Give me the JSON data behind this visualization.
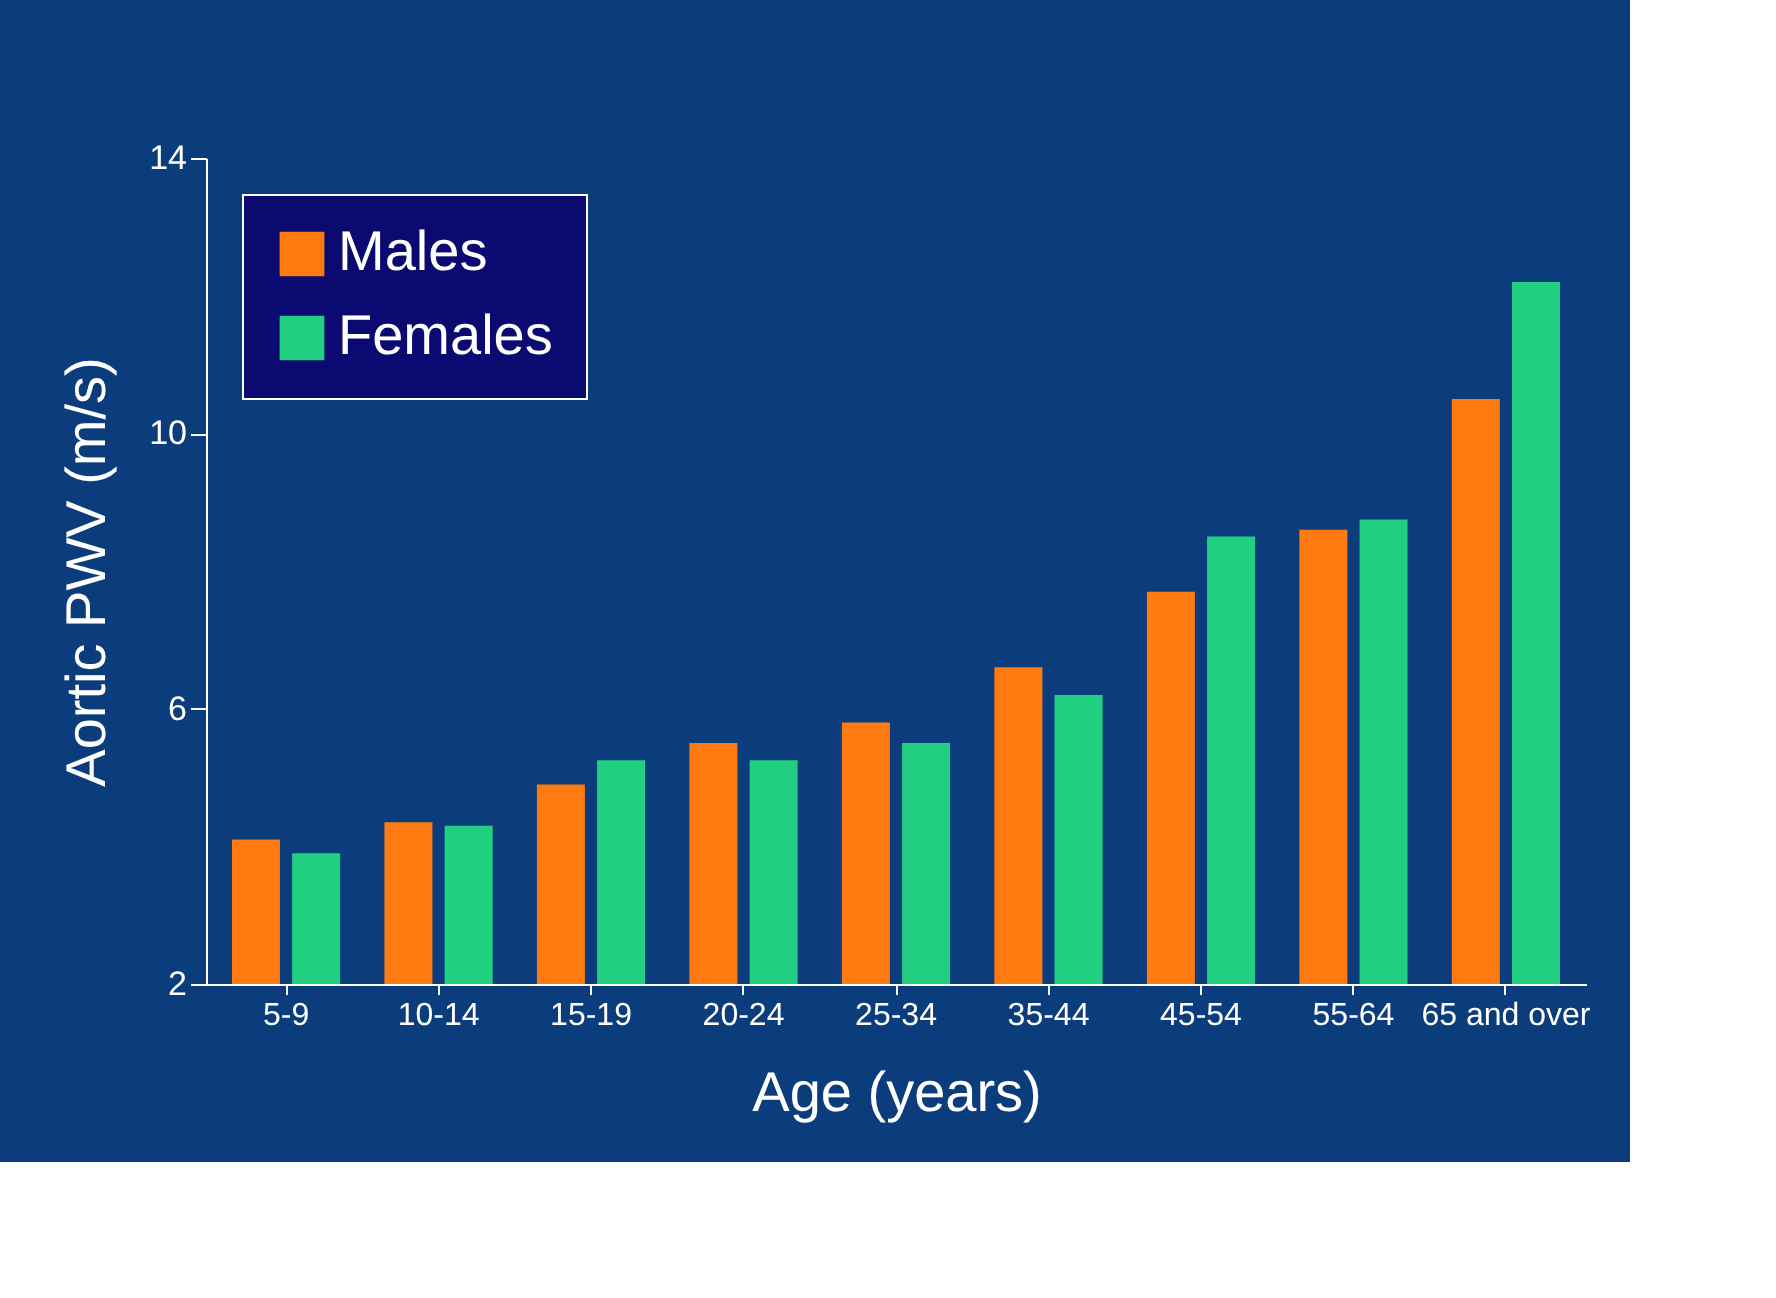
{
  "chart_data": {
    "type": "bar",
    "xlabel": "Age (years)",
    "ylabel": "Aortic PWV (m/s)",
    "categories": [
      "5-9",
      "10-14",
      "15-19",
      "20-24",
      "25-34",
      "35-44",
      "45-54",
      "55-64",
      "65 and over"
    ],
    "series": [
      {
        "name": "Males",
        "color": "#ff7a10",
        "values": [
          4.1,
          4.35,
          4.9,
          5.5,
          5.8,
          6.6,
          7.7,
          8.6,
          10.5
        ]
      },
      {
        "name": "Females",
        "color": "#20d080",
        "values": [
          3.9,
          4.3,
          5.25,
          5.25,
          5.5,
          6.2,
          8.5,
          8.75,
          12.2
        ]
      }
    ],
    "ylim": [
      2,
      14
    ],
    "yticks": [
      2,
      6,
      10,
      14
    ],
    "grid": false,
    "legend": "top left"
  }
}
